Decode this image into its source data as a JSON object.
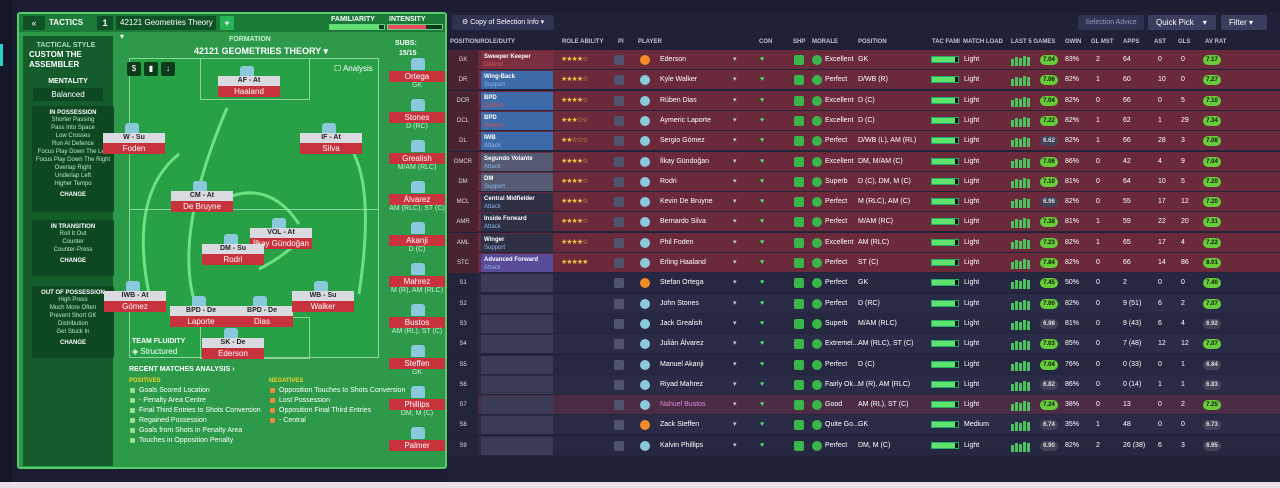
{
  "tactics": {
    "title": "TACTICS",
    "slot": "1",
    "name": "42121 Geometries Theory",
    "familiarity_label": "FAMILIARITY",
    "intensity_label": "INTENSITY",
    "familiarity": 0.9,
    "intensity": 0.7,
    "style_label": "TACTICAL STYLE",
    "style_name": "CUSTOM THE ASSEMBLER",
    "mentality_label": "MENTALITY",
    "mentality": "Balanced",
    "formation_label": "FORMATION",
    "formation": "42121 GEOMETRIES THEORY",
    "subs_label": "SUBS:",
    "subs_value": "15/15",
    "analysis_btn": "Analysis",
    "fluidity_label": "TEAM FLUIDITY",
    "fluidity": "Structured"
  },
  "in_possession": {
    "title": "IN POSSESSION",
    "items": [
      "Shorter Passing",
      "Pass Into Space",
      "Low Crosses",
      "Run At Defence",
      "Focus Play Down The Left",
      "Focus Play Down The Right",
      "Overlap Right",
      "Underlap Left",
      "Higher Tempo"
    ],
    "change": "CHANGE"
  },
  "in_transition": {
    "title": "IN TRANSITION",
    "items": [
      "Roll It Out",
      "Counter",
      "Counter-Press"
    ],
    "change": "CHANGE"
  },
  "out_possession": {
    "title": "OUT OF POSSESSION",
    "items": [
      "High Press",
      "Much More Often",
      "Prevent Short GK",
      "Distribution",
      "Get Stuck In"
    ],
    "change": "CHANGE"
  },
  "pitch_players": [
    {
      "role": "AF - At",
      "name": "Haaland"
    },
    {
      "role": "W - Su",
      "name": "Foden"
    },
    {
      "role": "IF - At",
      "name": "Silva"
    },
    {
      "role": "CM - At",
      "name": "De Bruyne"
    },
    {
      "role": "VOL - At",
      "name": "İlkay Gündoğan"
    },
    {
      "role": "DM - Su",
      "name": "Rodri"
    },
    {
      "role": "IWB - At",
      "name": "Gómez"
    },
    {
      "role": "BPD - De",
      "name": "Laporte"
    },
    {
      "role": "BPD - De",
      "name": "Dias"
    },
    {
      "role": "WB - Su",
      "name": "Walker"
    },
    {
      "role": "SK - De",
      "name": "Ederson"
    }
  ],
  "subs_list": [
    {
      "name": "Ortega",
      "pos": "GK"
    },
    {
      "name": "Stones",
      "pos": "D (RC)"
    },
    {
      "name": "Grealish",
      "pos": "M/AM (RLC)"
    },
    {
      "name": "Álvarez",
      "pos": "AM (RLC), ST (C)"
    },
    {
      "name": "Akanji",
      "pos": "D (C)"
    },
    {
      "name": "Mahrez",
      "pos": "M (R), AM (RLC)"
    },
    {
      "name": "Bustos",
      "pos": "AM (RL), ST (C)"
    },
    {
      "name": "Steffen",
      "pos": "GK"
    },
    {
      "name": "Phillips",
      "pos": "DM, M (C)"
    },
    {
      "name": "Palmer",
      "pos": ""
    }
  ],
  "recent": {
    "title": "RECENT MATCHES ANALYSIS",
    "pos_label": "POSITIVES",
    "neg_label": "NEGATIVES",
    "positives": [
      "Goals Scored Location",
      "- Penalty Area Centre",
      "Final Third Entries to Shots Conversion",
      "Regained Possession",
      "Goals from Shots in Penalty Area",
      "Touches in Opposition Penalty"
    ],
    "negatives": [
      "Opposition Touches to Shots Conversion",
      "Lost Possession",
      "Opposition Final Third Entries",
      "- Central"
    ]
  },
  "toolbar": {
    "copy": "Copy of Selection Info",
    "advice": "Selection Advice",
    "quick_pick": "Quick Pick",
    "filter": "Filter"
  },
  "headers": {
    "pos": "POSITION/ROLE/DUTY",
    "ability": "ROLE ABILITY",
    "pi": "PI",
    "player": "PLAYER",
    "con": "CON",
    "shp": "SHP",
    "morale": "MORALE",
    "position": "POSITION",
    "tac": "TAC FAMI",
    "load": "MATCH LOAD",
    "last5": "LAST 5 GAMES",
    "gwin": "GWIN",
    "glmst": "GL MST",
    "apps": "APPS",
    "ast": "AST",
    "gls": "GLS",
    "avrat": "AV RAT"
  },
  "rows": [
    {
      "slot": "GK",
      "role": "Sweeper Keeper",
      "duty": "Defend",
      "stars": 4,
      "player": "Ederson",
      "morale": "Excellent",
      "position": "GK",
      "load": "Light",
      "form": "7.04",
      "gwin": "83%",
      "glmst": "2",
      "apps": "64",
      "ast": "0",
      "gls": "0",
      "avrat": "7.17",
      "rc": "#7a2e3f",
      "dc": "#d9534f"
    },
    {
      "slot": "DR",
      "role": "Wing-Back",
      "duty": "Support",
      "stars": 4,
      "player": "Kyle Walker",
      "morale": "Perfect",
      "position": "D/WB (R)",
      "load": "Light",
      "form": "7.06",
      "gwin": "82%",
      "glmst": "1",
      "apps": "60",
      "ast": "10",
      "gls": "0",
      "avrat": "7.27",
      "rc": "#3d6aa8",
      "dc": "#8fb6e8"
    },
    {
      "slot": "DCR",
      "role": "BPD",
      "duty": "Defend",
      "stars": 4,
      "player": "Rúben Dias",
      "morale": "Excellent",
      "position": "D (C)",
      "load": "Light",
      "form": "7.04",
      "gwin": "82%",
      "glmst": "0",
      "apps": "66",
      "ast": "0",
      "gls": "5",
      "avrat": "7.10",
      "rc": "#3d6aa8",
      "dc": "#d9534f"
    },
    {
      "slot": "DCL",
      "role": "BPD",
      "duty": "Defend",
      "stars": 3,
      "player": "Aymeric Laporte",
      "morale": "Excellent",
      "position": "D (C)",
      "load": "Light",
      "form": "7.22",
      "gwin": "82%",
      "glmst": "1",
      "apps": "62",
      "ast": "1",
      "gls": "29",
      "avrat": "7.34",
      "rc": "#3d6aa8",
      "dc": "#d9534f"
    },
    {
      "slot": "DL",
      "role": "IWB",
      "duty": "Attack",
      "stars": 2,
      "player": "Sergio Gómez",
      "morale": "Perfect",
      "position": "D/WB (L), AM (RL)",
      "load": "Light",
      "form": "6.62",
      "gwin": "82%",
      "glmst": "1",
      "apps": "66",
      "ast": "28",
      "gls": "3",
      "avrat": "7.08",
      "rc": "#3d6aa8",
      "dc": "#8fb6e8"
    },
    {
      "slot": "DMCR",
      "role": "Segundo Volante",
      "duty": "Attack",
      "stars": 4,
      "player": "İlkay Gündoğan",
      "morale": "Excellent",
      "position": "DM, M/AM (C)",
      "load": "Light",
      "form": "7.06",
      "gwin": "86%",
      "glmst": "0",
      "apps": "42",
      "ast": "4",
      "gls": "9",
      "avrat": "7.04",
      "rc": "#555a72",
      "dc": "#8fb6e8"
    },
    {
      "slot": "DM",
      "role": "DM",
      "duty": "Support",
      "stars": 4,
      "player": "Rodri",
      "morale": "Superb",
      "position": "D (C), DM, M (C)",
      "load": "Light",
      "form": "7.10",
      "gwin": "81%",
      "glmst": "0",
      "apps": "64",
      "ast": "10",
      "gls": "5",
      "avrat": "7.20",
      "rc": "#555a72",
      "dc": "#8fb6e8"
    },
    {
      "slot": "MCL",
      "role": "Central Midfielder",
      "duty": "Attack",
      "stars": 4,
      "player": "Kevin De Bruyne",
      "morale": "Perfect",
      "position": "M (RLC), AM (C)",
      "load": "Light",
      "form": "6.96",
      "gwin": "82%",
      "glmst": "0",
      "apps": "55",
      "ast": "17",
      "gls": "12",
      "avrat": "7.20",
      "rc": "#2e3046",
      "dc": "#8fb6e8"
    },
    {
      "slot": "AMR",
      "role": "Inside Forward",
      "duty": "Attack",
      "stars": 4,
      "player": "Bernardo Silva",
      "morale": "Perfect",
      "position": "M/AM (RC)",
      "load": "Light",
      "form": "7.38",
      "gwin": "81%",
      "glmst": "1",
      "apps": "59",
      "ast": "22",
      "gls": "20",
      "avrat": "7.31",
      "rc": "#2e3046",
      "dc": "#8fb6e8"
    },
    {
      "slot": "AML",
      "role": "Winger",
      "duty": "Support",
      "stars": 4,
      "player": "Phil Foden",
      "morale": "Excellent",
      "position": "AM (RLC)",
      "load": "Light",
      "form": "7.23",
      "gwin": "82%",
      "glmst": "1",
      "apps": "65",
      "ast": "17",
      "gls": "4",
      "avrat": "7.22",
      "rc": "#2e3046",
      "dc": "#8fb6e8"
    },
    {
      "slot": "STC",
      "role": "Advanced Forward",
      "duty": "Attack",
      "stars": 5,
      "player": "Erling Haaland",
      "morale": "Perfect",
      "position": "ST (C)",
      "load": "Light",
      "form": "7.84",
      "gwin": "82%",
      "glmst": "0",
      "apps": "66",
      "ast": "14",
      "gls": "86",
      "avrat": "8.01",
      "rc": "#5a4a9a",
      "dc": "#8fb6e8"
    },
    {
      "slot": "S1",
      "role": "",
      "duty": "",
      "stars": 0,
      "player": "Stefan Ortega",
      "morale": "Perfect",
      "position": "GK",
      "load": "Light",
      "form": "7.45",
      "gwin": "50%",
      "glmst": "0",
      "apps": "2",
      "ast": "0",
      "gls": "0",
      "avrat": "7.40",
      "rc": "",
      "dc": ""
    },
    {
      "slot": "S2",
      "role": "",
      "duty": "",
      "stars": 0,
      "player": "John Stones",
      "morale": "Perfect",
      "position": "D (RC)",
      "load": "Light",
      "form": "7.00",
      "gwin": "82%",
      "glmst": "0",
      "apps": "9 (51)",
      "ast": "6",
      "gls": "2",
      "avrat": "7.07",
      "rc": "",
      "dc": ""
    },
    {
      "slot": "S3",
      "role": "",
      "duty": "",
      "stars": 0,
      "player": "Jack Grealish",
      "morale": "Superb",
      "position": "M/AM (RLC)",
      "load": "Light",
      "form": "6.98",
      "gwin": "81%",
      "glmst": "0",
      "apps": "9 (43)",
      "ast": "6",
      "gls": "4",
      "avrat": "6.92",
      "rc": "",
      "dc": ""
    },
    {
      "slot": "S4",
      "role": "",
      "duty": "",
      "stars": 0,
      "player": "Julián Álvarez",
      "morale": "Extremel...",
      "position": "AM (RLC), ST (C)",
      "load": "Light",
      "form": "7.03",
      "gwin": "85%",
      "glmst": "0",
      "apps": "7 (48)",
      "ast": "12",
      "gls": "12",
      "avrat": "7.07",
      "rc": "",
      "dc": ""
    },
    {
      "slot": "S5",
      "role": "",
      "duty": "",
      "stars": 0,
      "player": "Manuel Akanji",
      "morale": "Perfect",
      "position": "D (C)",
      "load": "Light",
      "form": "7.04",
      "gwin": "76%",
      "glmst": "0",
      "apps": "0 (33)",
      "ast": "0",
      "gls": "1",
      "avrat": "6.84",
      "rc": "",
      "dc": ""
    },
    {
      "slot": "S6",
      "role": "",
      "duty": "",
      "stars": 0,
      "player": "Riyad Mahrez",
      "morale": "Fairly Ok...",
      "position": "M (R), AM (RLC)",
      "load": "Light",
      "form": "6.82",
      "gwin": "86%",
      "glmst": "0",
      "apps": "0 (14)",
      "ast": "1",
      "gls": "1",
      "avrat": "6.83",
      "rc": "",
      "dc": ""
    },
    {
      "slot": "S7",
      "role": "",
      "duty": "",
      "stars": 0,
      "player": "Nahuel Bustos",
      "morale": "Good",
      "position": "AM (RL), ST (C)",
      "load": "Light",
      "form": "7.24",
      "gwin": "38%",
      "glmst": "0",
      "apps": "13",
      "ast": "0",
      "gls": "2",
      "avrat": "7.25",
      "rc": "",
      "dc": ""
    },
    {
      "slot": "S8",
      "role": "",
      "duty": "",
      "stars": 0,
      "player": "Zack Steffen",
      "morale": "Quite Go...",
      "position": "GK",
      "load": "Medium",
      "form": "6.74",
      "gwin": "35%",
      "glmst": "1",
      "apps": "48",
      "ast": "0",
      "gls": "0",
      "avrat": "6.73",
      "rc": "",
      "dc": ""
    },
    {
      "slot": "S9",
      "role": "",
      "duty": "",
      "stars": 0,
      "player": "Kalvin Phillips",
      "morale": "Perfect",
      "position": "DM, M (C)",
      "load": "Light",
      "form": "6.90",
      "gwin": "82%",
      "glmst": "2",
      "apps": "26 (38)",
      "ast": "6",
      "gls": "3",
      "avrat": "6.95",
      "rc": "",
      "dc": ""
    }
  ]
}
